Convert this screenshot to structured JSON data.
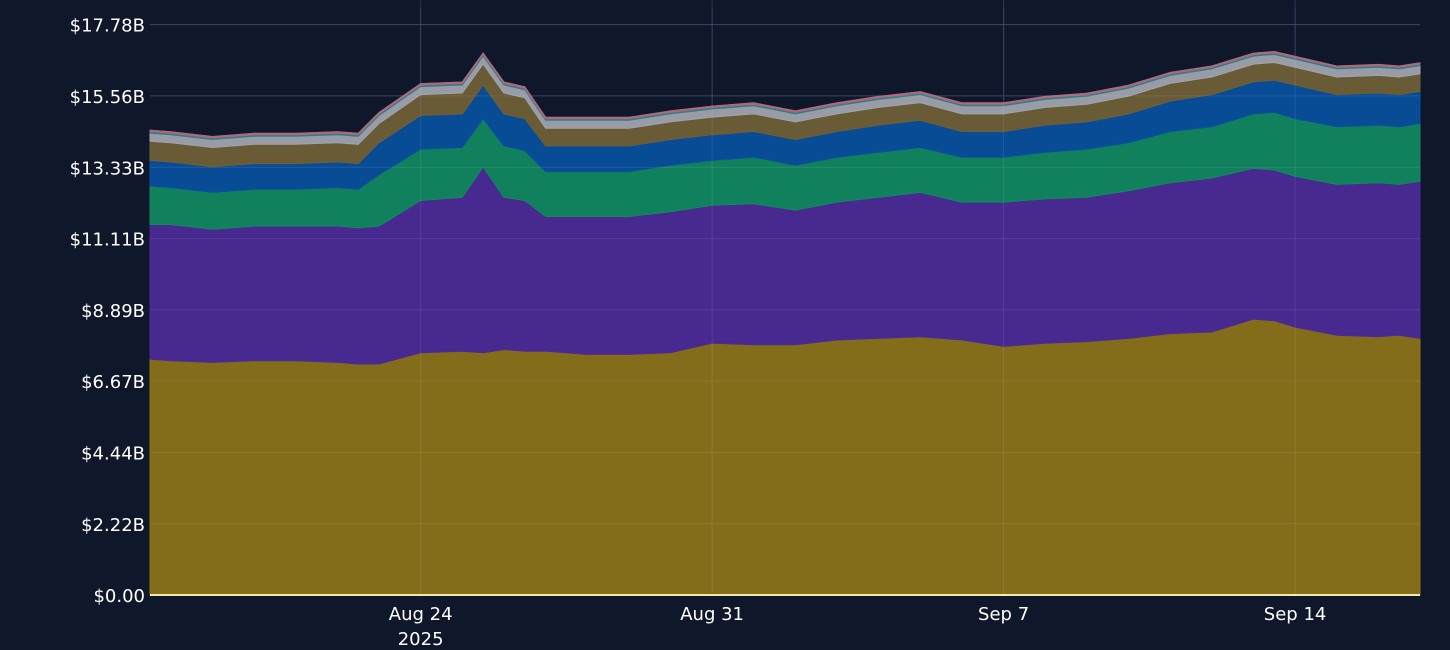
{
  "colors": {
    "background": "#0f172a",
    "grid": "#2a3656",
    "axis_line": "#f5e9a8"
  },
  "chart_data": {
    "type": "area",
    "stacked": true,
    "grid": true,
    "legend": "none",
    "title": "",
    "xlabel": "",
    "ylabel": "",
    "ylim": [
      0,
      18.3
    ],
    "y_unit": "$B",
    "y_ticks": [
      {
        "value": 0.0,
        "label": "$0.00"
      },
      {
        "value": 2.22,
        "label": "$2.22B"
      },
      {
        "value": 4.44,
        "label": "$4.44B"
      },
      {
        "value": 6.67,
        "label": "$6.67B"
      },
      {
        "value": 8.89,
        "label": "$8.89B"
      },
      {
        "value": 11.11,
        "label": "$11.11B"
      },
      {
        "value": 13.33,
        "label": "$13.33B"
      },
      {
        "value": 15.56,
        "label": "$15.56B"
      },
      {
        "value": 17.78,
        "label": "$17.78B"
      }
    ],
    "xlim": [
      "2025-08-17T12:00",
      "2025-09-17T00:00"
    ],
    "x_ticks": [
      {
        "value": "2025-08-24",
        "label": "Aug 24",
        "sublabel": "2025"
      },
      {
        "value": "2025-08-31",
        "label": "Aug 31",
        "sublabel": ""
      },
      {
        "value": "2025-09-07",
        "label": "Sep 7",
        "sublabel": ""
      },
      {
        "value": "2025-09-14",
        "label": "Sep 14",
        "sublabel": ""
      }
    ],
    "x": [
      "2025-08-17T12:00",
      "2025-08-18",
      "2025-08-19",
      "2025-08-20",
      "2025-08-21",
      "2025-08-22",
      "2025-08-22T12:00",
      "2025-08-23",
      "2025-08-24",
      "2025-08-25",
      "2025-08-25T12:00",
      "2025-08-26",
      "2025-08-26T12:00",
      "2025-08-27",
      "2025-08-28",
      "2025-08-29",
      "2025-08-30",
      "2025-08-31",
      "2025-09-01",
      "2025-09-02",
      "2025-09-03",
      "2025-09-04",
      "2025-09-05",
      "2025-09-06",
      "2025-09-07",
      "2025-09-08",
      "2025-09-09",
      "2025-09-10",
      "2025-09-11",
      "2025-09-12",
      "2025-09-13",
      "2025-09-13T12:00",
      "2025-09-14",
      "2025-09-15",
      "2025-09-16",
      "2025-09-16T12:00",
      "2025-09-17"
    ],
    "series": [
      {
        "color": "#8a7219",
        "values": [
          7.35,
          7.3,
          7.25,
          7.3,
          7.3,
          7.25,
          7.2,
          7.2,
          7.55,
          7.6,
          7.55,
          7.65,
          7.6,
          7.6,
          7.5,
          7.5,
          7.55,
          7.85,
          7.8,
          7.8,
          7.95,
          8.0,
          8.05,
          7.95,
          7.75,
          7.85,
          7.9,
          8.0,
          8.15,
          8.2,
          8.6,
          8.55,
          8.35,
          8.1,
          8.05,
          8.1,
          8.0
        ]
      },
      {
        "color": "#4c2a96",
        "values": [
          4.2,
          4.25,
          4.15,
          4.2,
          4.2,
          4.25,
          4.25,
          4.3,
          4.75,
          4.8,
          5.8,
          4.75,
          4.7,
          4.2,
          4.3,
          4.3,
          4.4,
          4.3,
          4.4,
          4.2,
          4.3,
          4.4,
          4.5,
          4.3,
          4.5,
          4.5,
          4.5,
          4.6,
          4.7,
          4.8,
          4.7,
          4.7,
          4.7,
          4.7,
          4.8,
          4.7,
          4.9
        ]
      },
      {
        "color": "#128760",
        "values": [
          1.2,
          1.15,
          1.15,
          1.15,
          1.15,
          1.2,
          1.2,
          1.6,
          1.6,
          1.55,
          1.5,
          1.6,
          1.55,
          1.4,
          1.4,
          1.4,
          1.45,
          1.4,
          1.45,
          1.4,
          1.4,
          1.4,
          1.4,
          1.4,
          1.4,
          1.45,
          1.5,
          1.5,
          1.6,
          1.6,
          1.7,
          1.8,
          1.8,
          1.8,
          1.8,
          1.8,
          1.8
        ]
      },
      {
        "color": "#0a4f9c",
        "values": [
          0.8,
          0.8,
          0.8,
          0.8,
          0.8,
          0.8,
          0.8,
          1.0,
          1.05,
          1.05,
          1.05,
          1.0,
          1.0,
          0.8,
          0.8,
          0.8,
          0.8,
          0.8,
          0.8,
          0.8,
          0.8,
          0.85,
          0.85,
          0.8,
          0.8,
          0.85,
          0.85,
          0.9,
          0.95,
          1.0,
          1.0,
          1.0,
          1.05,
          1.0,
          1.0,
          1.0,
          1.0
        ]
      },
      {
        "color": "#6e5f36",
        "values": [
          0.6,
          0.6,
          0.6,
          0.6,
          0.6,
          0.6,
          0.6,
          0.6,
          0.65,
          0.65,
          0.65,
          0.65,
          0.65,
          0.55,
          0.55,
          0.55,
          0.55,
          0.55,
          0.55,
          0.55,
          0.55,
          0.55,
          0.55,
          0.55,
          0.55,
          0.55,
          0.55,
          0.55,
          0.55,
          0.55,
          0.55,
          0.55,
          0.55,
          0.55,
          0.55,
          0.55,
          0.55
        ]
      },
      {
        "color": "#9fa3ae",
        "values": [
          0.25,
          0.25,
          0.25,
          0.25,
          0.25,
          0.25,
          0.25,
          0.25,
          0.25,
          0.25,
          0.25,
          0.25,
          0.25,
          0.25,
          0.25,
          0.25,
          0.25,
          0.25,
          0.25,
          0.25,
          0.25,
          0.25,
          0.25,
          0.25,
          0.25,
          0.25,
          0.25,
          0.25,
          0.25,
          0.25,
          0.25,
          0.25,
          0.25,
          0.25,
          0.25,
          0.25,
          0.25
        ]
      },
      {
        "color": "#2f7e8a",
        "values": [
          0.05,
          0.05,
          0.05,
          0.05,
          0.05,
          0.05,
          0.05,
          0.05,
          0.05,
          0.05,
          0.05,
          0.05,
          0.05,
          0.05,
          0.05,
          0.05,
          0.05,
          0.05,
          0.05,
          0.05,
          0.05,
          0.05,
          0.05,
          0.05,
          0.05,
          0.05,
          0.05,
          0.05,
          0.05,
          0.05,
          0.05,
          0.05,
          0.05,
          0.05,
          0.05,
          0.05,
          0.05
        ]
      },
      {
        "color": "#b0687a",
        "values": [
          0.04,
          0.04,
          0.04,
          0.04,
          0.04,
          0.04,
          0.04,
          0.04,
          0.04,
          0.04,
          0.04,
          0.04,
          0.04,
          0.04,
          0.04,
          0.04,
          0.04,
          0.04,
          0.04,
          0.04,
          0.04,
          0.04,
          0.04,
          0.04,
          0.04,
          0.04,
          0.04,
          0.04,
          0.04,
          0.04,
          0.04,
          0.04,
          0.04,
          0.04,
          0.04,
          0.04,
          0.04
        ]
      }
    ]
  }
}
